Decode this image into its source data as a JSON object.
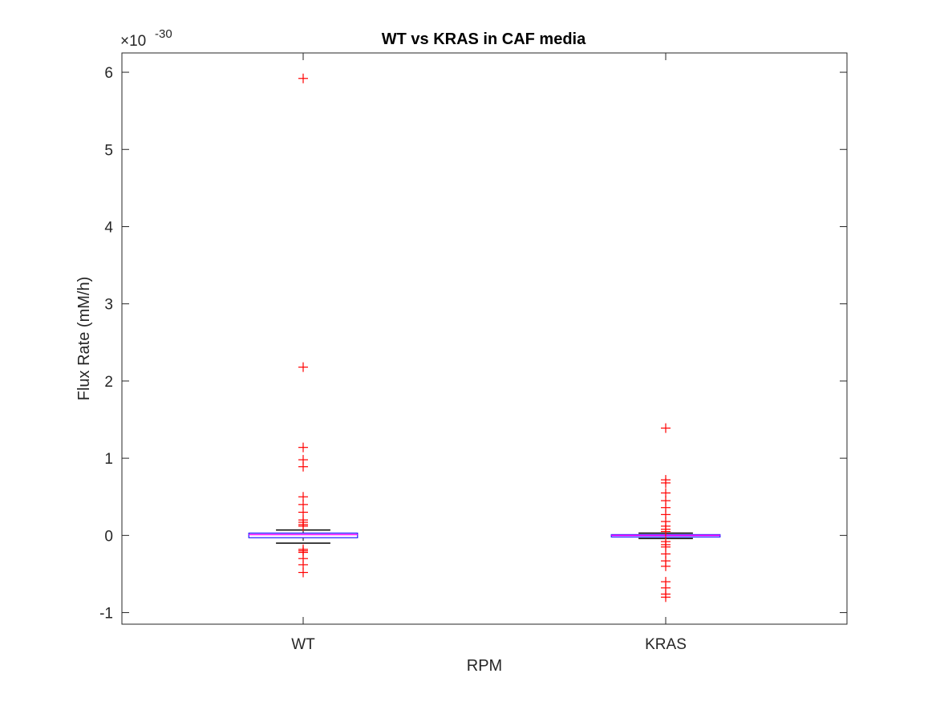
{
  "chart_data": {
    "type": "box",
    "title": "WT vs KRAS in CAF media",
    "xlabel": "RPM",
    "ylabel": "Flux Rate (mM/h)",
    "exponent_label": "×10",
    "exponent_power": "-30",
    "ylim": [
      -1.15,
      6.25
    ],
    "yticks": [
      -1,
      0,
      1,
      2,
      3,
      4,
      5,
      6
    ],
    "ytick_labels": [
      "-1",
      "0",
      "1",
      "2",
      "3",
      "4",
      "5",
      "6"
    ],
    "categories": [
      "WT",
      "KRAS"
    ],
    "series": [
      {
        "category": "WT",
        "q1": -0.03,
        "median": 0.01,
        "q3": 0.03,
        "whisker_low": -0.1,
        "whisker_high": 0.07,
        "outliers": [
          5.92,
          2.18,
          1.14,
          0.98,
          0.89,
          0.5,
          0.4,
          0.3,
          0.2,
          0.17,
          0.14,
          0.12,
          -0.18,
          -0.2,
          -0.22,
          -0.3,
          -0.38,
          -0.48
        ]
      },
      {
        "category": "KRAS",
        "q1": -0.02,
        "median": 0.0,
        "q3": 0.01,
        "whisker_low": -0.04,
        "whisker_high": 0.03,
        "outliers": [
          1.39,
          0.72,
          0.68,
          0.55,
          0.45,
          0.36,
          0.27,
          0.18,
          0.12,
          0.08,
          0.05,
          -0.08,
          -0.12,
          -0.15,
          -0.24,
          -0.33,
          -0.4,
          -0.6,
          -0.68,
          -0.76,
          -0.8
        ]
      }
    ],
    "grid": false,
    "colors": {
      "box": "#1a1aff",
      "median": "#ff00ff",
      "whisker": "#000000",
      "outlier": "#ff0000",
      "axis": "#262626"
    }
  }
}
